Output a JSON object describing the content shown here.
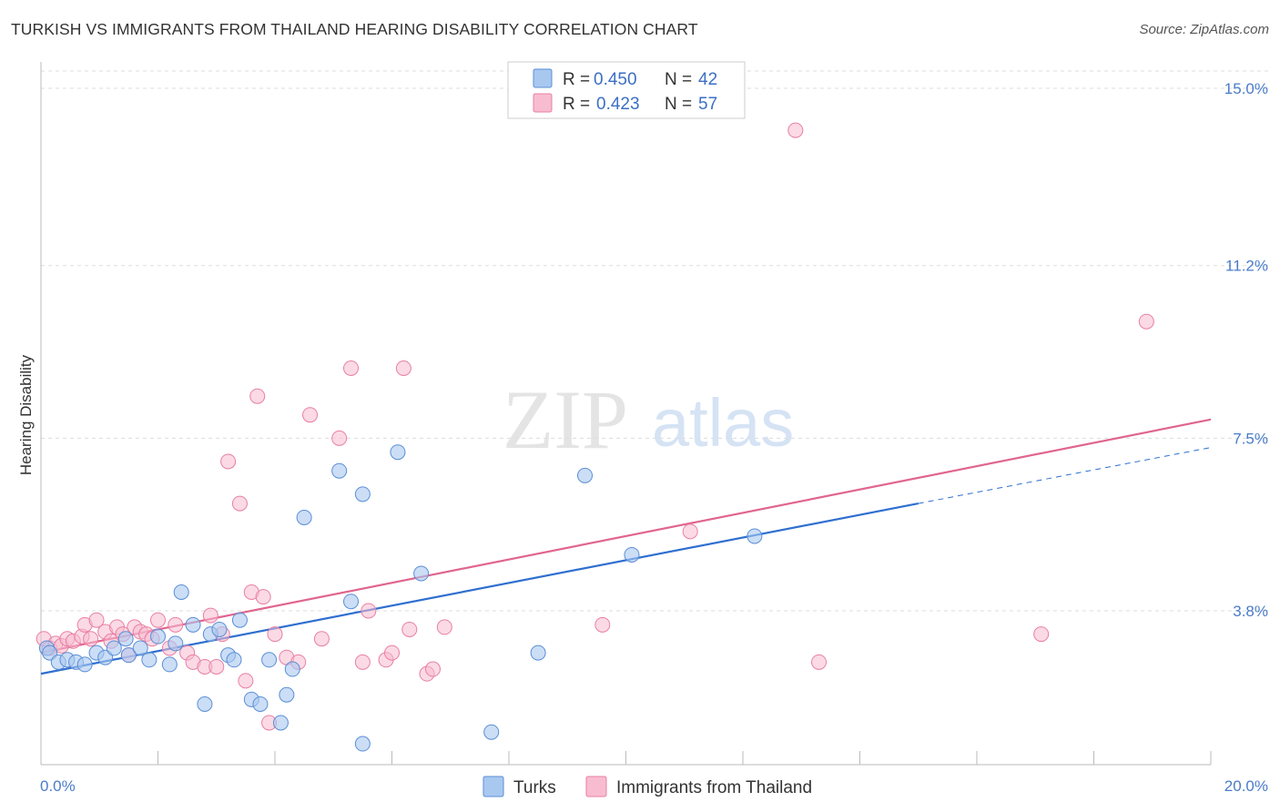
{
  "title": "TURKISH VS IMMIGRANTS FROM THAILAND HEARING DISABILITY CORRELATION CHART",
  "source": "Source: ZipAtlas.com",
  "watermark": {
    "zip": "ZIP",
    "atlas": "atlas"
  },
  "colors": {
    "turks_fill": "#a8c8f0",
    "turks_stroke": "#5b8ed6",
    "turks_line": "#2f6fd0",
    "thai_fill": "#f8bcd0",
    "thai_stroke": "#e97fa3",
    "thai_line": "#e0658f",
    "grid": "#dddddd",
    "tick_label": "#4a7cc9"
  },
  "legend": {
    "r_label": "R = ",
    "n_label": "N = ",
    "turks": {
      "r": "0.450",
      "n": "42"
    },
    "thai": {
      "r": "0.423",
      "n": "57"
    }
  },
  "chart_data": {
    "type": "scatter",
    "title": "TURKISH VS IMMIGRANTS FROM THAILAND HEARING DISABILITY CORRELATION CHART",
    "xlabel": "",
    "ylabel": "Hearing Disability",
    "xlim": [
      0,
      20
    ],
    "ylim": [
      0,
      15.5
    ],
    "x_tick_labels": [
      "0.0%",
      "20.0%"
    ],
    "y_ticks": [
      3.8,
      7.5,
      11.2,
      15.0
    ],
    "y_tick_labels": [
      "3.8%",
      "7.5%",
      "11.2%",
      "15.0%"
    ],
    "grid": true,
    "legend_position": "top-center",
    "series": [
      {
        "name": "Turks",
        "points": [
          [
            0.1,
            3.0
          ],
          [
            0.15,
            2.9
          ],
          [
            0.3,
            2.7
          ],
          [
            0.45,
            2.75
          ],
          [
            0.6,
            2.7
          ],
          [
            0.75,
            2.65
          ],
          [
            0.95,
            2.9
          ],
          [
            1.1,
            2.8
          ],
          [
            1.25,
            3.0
          ],
          [
            1.45,
            3.2
          ],
          [
            1.5,
            2.85
          ],
          [
            1.7,
            3.0
          ],
          [
            1.85,
            2.75
          ],
          [
            2.0,
            3.25
          ],
          [
            2.2,
            2.65
          ],
          [
            2.3,
            3.1
          ],
          [
            2.4,
            4.2
          ],
          [
            2.6,
            3.5
          ],
          [
            2.8,
            1.8
          ],
          [
            2.9,
            3.3
          ],
          [
            3.05,
            3.4
          ],
          [
            3.2,
            2.85
          ],
          [
            3.3,
            2.75
          ],
          [
            3.4,
            3.6
          ],
          [
            3.6,
            1.9
          ],
          [
            3.75,
            1.8
          ],
          [
            3.9,
            2.75
          ],
          [
            4.1,
            1.4
          ],
          [
            4.2,
            2.0
          ],
          [
            4.3,
            2.55
          ],
          [
            4.5,
            5.8
          ],
          [
            5.1,
            6.8
          ],
          [
            5.3,
            4.0
          ],
          [
            5.5,
            0.95
          ],
          [
            5.5,
            6.3
          ],
          [
            6.1,
            7.2
          ],
          [
            6.5,
            4.6
          ],
          [
            7.7,
            1.2
          ],
          [
            8.5,
            2.9
          ],
          [
            9.3,
            6.7
          ],
          [
            10.1,
            5.0
          ],
          [
            12.2,
            5.4
          ]
        ],
        "trend": {
          "x": [
            0,
            15
          ],
          "y": [
            2.45,
            6.1
          ],
          "extension": {
            "x": [
              15,
              20
            ],
            "y": [
              6.1,
              7.3
            ]
          }
        }
      },
      {
        "name": "Immigrants from Thailand",
        "points": [
          [
            0.05,
            3.2
          ],
          [
            0.15,
            3.0
          ],
          [
            0.25,
            3.1
          ],
          [
            0.35,
            3.05
          ],
          [
            0.45,
            3.2
          ],
          [
            0.55,
            3.15
          ],
          [
            0.7,
            3.25
          ],
          [
            0.75,
            3.5
          ],
          [
            0.85,
            3.2
          ],
          [
            0.95,
            3.6
          ],
          [
            1.1,
            3.35
          ],
          [
            1.2,
            3.15
          ],
          [
            1.3,
            3.45
          ],
          [
            1.4,
            3.3
          ],
          [
            1.5,
            2.85
          ],
          [
            1.6,
            3.45
          ],
          [
            1.7,
            3.35
          ],
          [
            1.8,
            3.3
          ],
          [
            1.9,
            3.2
          ],
          [
            2.0,
            3.6
          ],
          [
            2.2,
            3.0
          ],
          [
            2.3,
            3.5
          ],
          [
            2.5,
            2.9
          ],
          [
            2.6,
            2.7
          ],
          [
            2.8,
            2.6
          ],
          [
            2.9,
            3.7
          ],
          [
            3.0,
            2.6
          ],
          [
            3.1,
            3.3
          ],
          [
            3.2,
            7.0
          ],
          [
            3.4,
            6.1
          ],
          [
            3.5,
            2.3
          ],
          [
            3.6,
            4.2
          ],
          [
            3.7,
            8.4
          ],
          [
            3.8,
            4.1
          ],
          [
            3.9,
            1.4
          ],
          [
            4.0,
            3.3
          ],
          [
            4.2,
            2.8
          ],
          [
            4.4,
            2.7
          ],
          [
            4.6,
            8.0
          ],
          [
            4.8,
            3.2
          ],
          [
            5.1,
            7.5
          ],
          [
            5.3,
            9.0
          ],
          [
            5.5,
            2.7
          ],
          [
            5.6,
            3.8
          ],
          [
            5.9,
            2.75
          ],
          [
            6.0,
            2.9
          ],
          [
            6.2,
            9.0
          ],
          [
            6.3,
            3.4
          ],
          [
            6.6,
            2.45
          ],
          [
            6.7,
            2.55
          ],
          [
            6.9,
            3.45
          ],
          [
            9.6,
            3.5
          ],
          [
            11.1,
            5.5
          ],
          [
            12.9,
            14.1
          ],
          [
            13.3,
            2.7
          ],
          [
            17.1,
            3.3
          ],
          [
            18.9,
            10.0
          ]
        ],
        "trend": {
          "x": [
            0,
            20
          ],
          "y": [
            2.9,
            7.9
          ]
        }
      }
    ]
  },
  "bottom_legend": [
    {
      "label": "Turks"
    },
    {
      "label": "Immigrants from Thailand"
    }
  ]
}
